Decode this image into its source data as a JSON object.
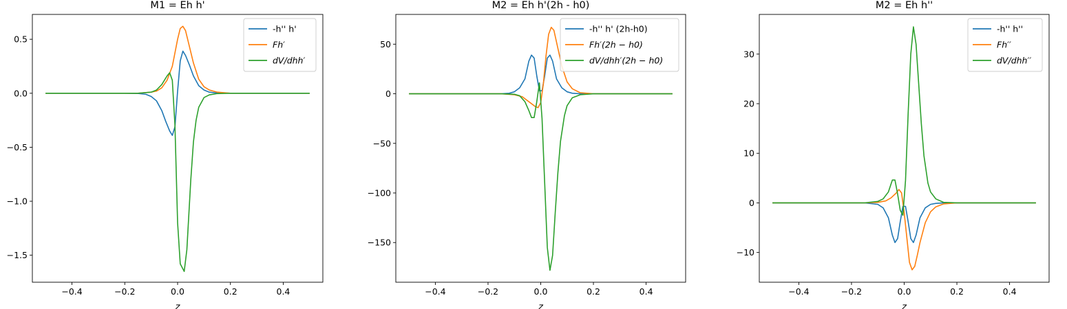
{
  "chart_data": [
    {
      "type": "line",
      "title": "M1 = Eh h'",
      "xlabel": "z",
      "ylabel": "",
      "xlim": [
        -0.55,
        0.55
      ],
      "ylim": [
        -1.75,
        0.73
      ],
      "xticks": [
        -0.4,
        -0.2,
        0.0,
        0.2,
        0.4
      ],
      "xtick_labels": [
        "−0.4",
        "−0.2",
        "0.0",
        "0.2",
        "0.4"
      ],
      "yticks": [
        -1.5,
        -1.0,
        -0.5,
        0.0,
        0.5
      ],
      "ytick_labels": [
        "−1.5",
        "−1.0",
        "−0.5",
        "0.0",
        "0.5"
      ],
      "legend_position": "top-right",
      "grid": false,
      "series": [
        {
          "name": "-h'' h'",
          "italic": false,
          "color": "#1f77b4",
          "x": [
            -0.5,
            -0.2,
            -0.15,
            -0.12,
            -0.1,
            -0.08,
            -0.06,
            -0.045,
            -0.03,
            -0.02,
            -0.01,
            0.0,
            0.01,
            0.02,
            0.03,
            0.045,
            0.06,
            0.08,
            0.1,
            0.12,
            0.15,
            0.2,
            0.5
          ],
          "y": [
            0.0,
            0.0,
            -0.002,
            -0.01,
            -0.03,
            -0.07,
            -0.16,
            -0.26,
            -0.35,
            -0.39,
            -0.31,
            0.02,
            0.3,
            0.39,
            0.35,
            0.26,
            0.16,
            0.07,
            0.03,
            0.01,
            0.002,
            0.0,
            0.0
          ]
        },
        {
          "name": "Fh′",
          "italic": true,
          "color": "#ff7f0e",
          "x": [
            -0.5,
            -0.15,
            -0.1,
            -0.08,
            -0.06,
            -0.04,
            -0.02,
            0.0,
            0.01,
            0.02,
            0.03,
            0.04,
            0.06,
            0.08,
            0.1,
            0.12,
            0.15,
            0.2,
            0.5
          ],
          "y": [
            0.0,
            0.0,
            0.01,
            0.02,
            0.05,
            0.12,
            0.25,
            0.5,
            0.6,
            0.62,
            0.58,
            0.48,
            0.28,
            0.13,
            0.06,
            0.03,
            0.01,
            0.0,
            0.0
          ]
        },
        {
          "name": "dV/dhh′",
          "italic": true,
          "color": "#2ca02c",
          "x": [
            -0.5,
            -0.2,
            -0.15,
            -0.1,
            -0.08,
            -0.06,
            -0.04,
            -0.03,
            -0.02,
            -0.01,
            0.0,
            0.01,
            0.025,
            0.035,
            0.05,
            0.06,
            0.07,
            0.08,
            0.1,
            0.12,
            0.15,
            0.2,
            0.5
          ],
          "y": [
            0.0,
            0.0,
            0.0,
            0.01,
            0.03,
            0.08,
            0.16,
            0.19,
            0.12,
            -0.3,
            -1.2,
            -1.58,
            -1.65,
            -1.45,
            -0.8,
            -0.45,
            -0.25,
            -0.13,
            -0.04,
            -0.015,
            -0.003,
            0.0,
            0.0
          ]
        }
      ]
    },
    {
      "type": "line",
      "title": "M2 = Eh h'(2h - h0)",
      "xlabel": "z",
      "ylabel": "",
      "xlim": [
        -0.55,
        0.55
      ],
      "ylim": [
        -190,
        80
      ],
      "xticks": [
        -0.4,
        -0.2,
        0.0,
        0.2,
        0.4
      ],
      "xtick_labels": [
        "−0.4",
        "−0.2",
        "0.0",
        "0.2",
        "0.4"
      ],
      "yticks": [
        -150,
        -100,
        -50,
        0,
        50
      ],
      "ytick_labels": [
        "−150",
        "−100",
        "−50",
        "0",
        "50"
      ],
      "legend_position": "top-right",
      "grid": false,
      "series": [
        {
          "name": "-h'' h' (2h-h0)",
          "italic": false,
          "color": "#1f77b4",
          "x": [
            -0.5,
            -0.15,
            -0.12,
            -0.1,
            -0.08,
            -0.06,
            -0.045,
            -0.035,
            -0.025,
            -0.015,
            -0.005,
            0.005,
            0.015,
            0.025,
            0.035,
            0.045,
            0.06,
            0.08,
            0.1,
            0.12,
            0.15,
            0.5
          ],
          "y": [
            0.0,
            0.0,
            0.5,
            2,
            6,
            15,
            33,
            39,
            36,
            18,
            3,
            3,
            18,
            36,
            39,
            33,
            15,
            6,
            2,
            0.5,
            0.0,
            0.0
          ]
        },
        {
          "name": "Fh′(2h − h0)",
          "italic": true,
          "color": "#ff7f0e",
          "x": [
            -0.5,
            -0.15,
            -0.1,
            -0.07,
            -0.04,
            -0.02,
            -0.01,
            0.0,
            0.01,
            0.02,
            0.03,
            0.04,
            0.05,
            0.06,
            0.08,
            0.1,
            0.12,
            0.15,
            0.2,
            0.5
          ],
          "y": [
            0.0,
            0.0,
            -1,
            -3,
            -9,
            -13,
            -14,
            -9,
            10,
            38,
            60,
            67,
            64,
            52,
            28,
            12,
            5,
            1,
            0.0,
            0.0
          ]
        },
        {
          "name": "dV/dhh′(2h − h0)",
          "italic": true,
          "color": "#2ca02c",
          "x": [
            -0.5,
            -0.15,
            -0.1,
            -0.08,
            -0.06,
            -0.045,
            -0.035,
            -0.025,
            -0.015,
            -0.005,
            0.005,
            0.015,
            0.025,
            0.035,
            0.045,
            0.055,
            0.065,
            0.075,
            0.09,
            0.1,
            0.12,
            0.15,
            0.2,
            0.5
          ],
          "y": [
            0.0,
            0.0,
            -0.5,
            -2,
            -8,
            -17,
            -24,
            -24,
            -8,
            11,
            -25,
            -90,
            -155,
            -178,
            -163,
            -120,
            -80,
            -48,
            -22,
            -12,
            -4,
            -1,
            0.0,
            0.0
          ]
        }
      ]
    },
    {
      "type": "line",
      "title": "M2 = Eh h''",
      "xlabel": "z",
      "ylabel": "",
      "xlim": [
        -0.55,
        0.55
      ],
      "ylim": [
        -16,
        38
      ],
      "xticks": [
        -0.4,
        -0.2,
        0.0,
        0.2,
        0.4
      ],
      "xtick_labels": [
        "−0.4",
        "−0.2",
        "0.0",
        "0.2",
        "0.4"
      ],
      "yticks": [
        -10,
        0,
        10,
        20,
        30
      ],
      "ytick_labels": [
        "−10",
        "0",
        "10",
        "20",
        "30"
      ],
      "legend_position": "top-right",
      "grid": false,
      "series": [
        {
          "name": "-h'' h''",
          "italic": false,
          "color": "#1f77b4",
          "x": [
            -0.5,
            -0.15,
            -0.1,
            -0.08,
            -0.06,
            -0.045,
            -0.035,
            -0.025,
            -0.015,
            -0.005,
            0.005,
            0.015,
            0.025,
            0.035,
            0.045,
            0.06,
            0.08,
            0.1,
            0.12,
            0.15,
            0.5
          ],
          "y": [
            0.0,
            0.0,
            -0.3,
            -1,
            -3,
            -6.5,
            -8,
            -7.2,
            -3.8,
            -0.7,
            -0.7,
            -3.8,
            -7.2,
            -8,
            -6.5,
            -3,
            -1,
            -0.3,
            -0.1,
            0.0,
            0.0
          ]
        },
        {
          "name": "Fh′′",
          "italic": true,
          "color": "#ff7f0e",
          "x": [
            -0.5,
            -0.15,
            -0.1,
            -0.07,
            -0.05,
            -0.03,
            -0.02,
            -0.01,
            0.0,
            0.01,
            0.02,
            0.03,
            0.04,
            0.05,
            0.06,
            0.08,
            0.1,
            0.12,
            0.15,
            0.2,
            0.5
          ],
          "y": [
            0.0,
            0.0,
            0.1,
            0.4,
            1,
            2,
            2.7,
            2,
            -2,
            -7,
            -12,
            -13.5,
            -12.8,
            -10.5,
            -8,
            -4,
            -1.8,
            -0.8,
            -0.2,
            0.0,
            0.0
          ]
        },
        {
          "name": "dV/dhh′′",
          "italic": true,
          "color": "#2ca02c",
          "x": [
            -0.5,
            -0.15,
            -0.1,
            -0.08,
            -0.06,
            -0.045,
            -0.035,
            -0.025,
            -0.015,
            -0.005,
            0.005,
            0.015,
            0.025,
            0.035,
            0.045,
            0.055,
            0.065,
            0.075,
            0.09,
            0.1,
            0.12,
            0.15,
            0.2,
            0.5
          ],
          "y": [
            0.0,
            0.0,
            0.3,
            0.8,
            2.2,
            4.6,
            4.6,
            1.8,
            -1.5,
            -2.5,
            4.5,
            18,
            30,
            35.5,
            32,
            24,
            16,
            9.5,
            4,
            2.2,
            0.8,
            0.1,
            0.0,
            0.0
          ]
        }
      ]
    }
  ]
}
